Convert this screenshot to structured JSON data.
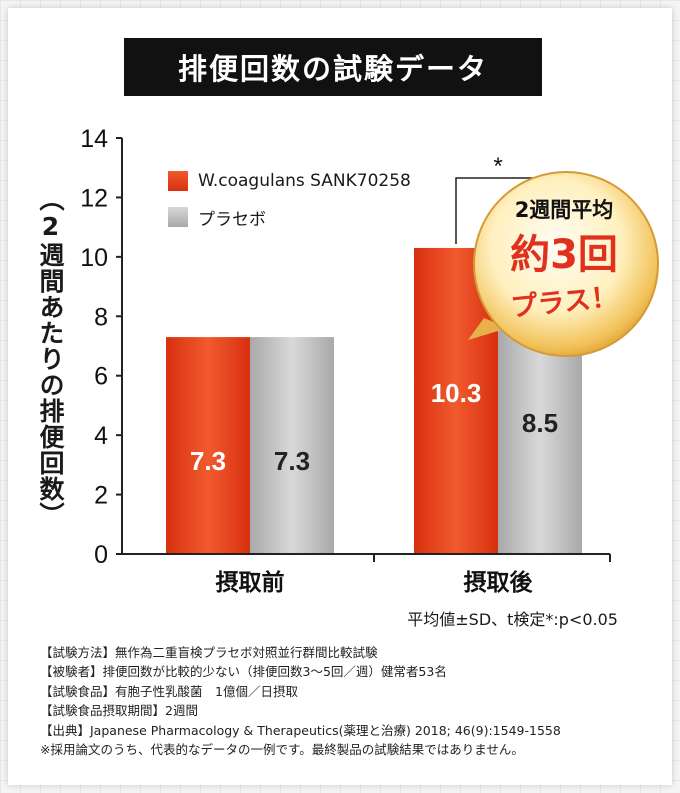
{
  "title": "排便回数の試験データ",
  "chart_data": {
    "type": "bar",
    "ylabel": "（2週間あたりの排便回数）",
    "ylim": [
      0,
      14
    ],
    "yticks": [
      0,
      2,
      4,
      6,
      8,
      10,
      12,
      14
    ],
    "categories": [
      "摂取前",
      "摂取後"
    ],
    "series": [
      {
        "name": "W.coagulans SANK70258",
        "color": "#e8401c",
        "values": [
          7.3,
          10.3
        ],
        "labels": [
          "7.3",
          "10.3"
        ]
      },
      {
        "name": "プラセボ",
        "color": "#bdbdbd",
        "values": [
          7.3,
          8.5
        ],
        "labels": [
          "7.3",
          "8.5"
        ]
      }
    ],
    "significance": "*",
    "legend": "top-left"
  },
  "badge": {
    "line1": "2週間平均",
    "line2": "約3回",
    "line3": "プラス！"
  },
  "stat_note": "平均値±SD、t検定*:p<0.05",
  "footnotes": [
    "【試験方法】無作為二重盲検プラセボ対照並行群間比較試験",
    "【被験者】排便回数が比較的少ない（排便回数3〜5回／週）健常者53名",
    "【試験食品】有胞子性乳酸菌　1億個／日摂取",
    "【試験食品摂取期間】2週間",
    "【出典】Japanese Pharmacology & Therapeutics(薬理と治療) 2018; 46(9):1549-1558",
    "※採用論文のうち、代表的なデータの一例です。最終製品の試験結果ではありません。"
  ]
}
